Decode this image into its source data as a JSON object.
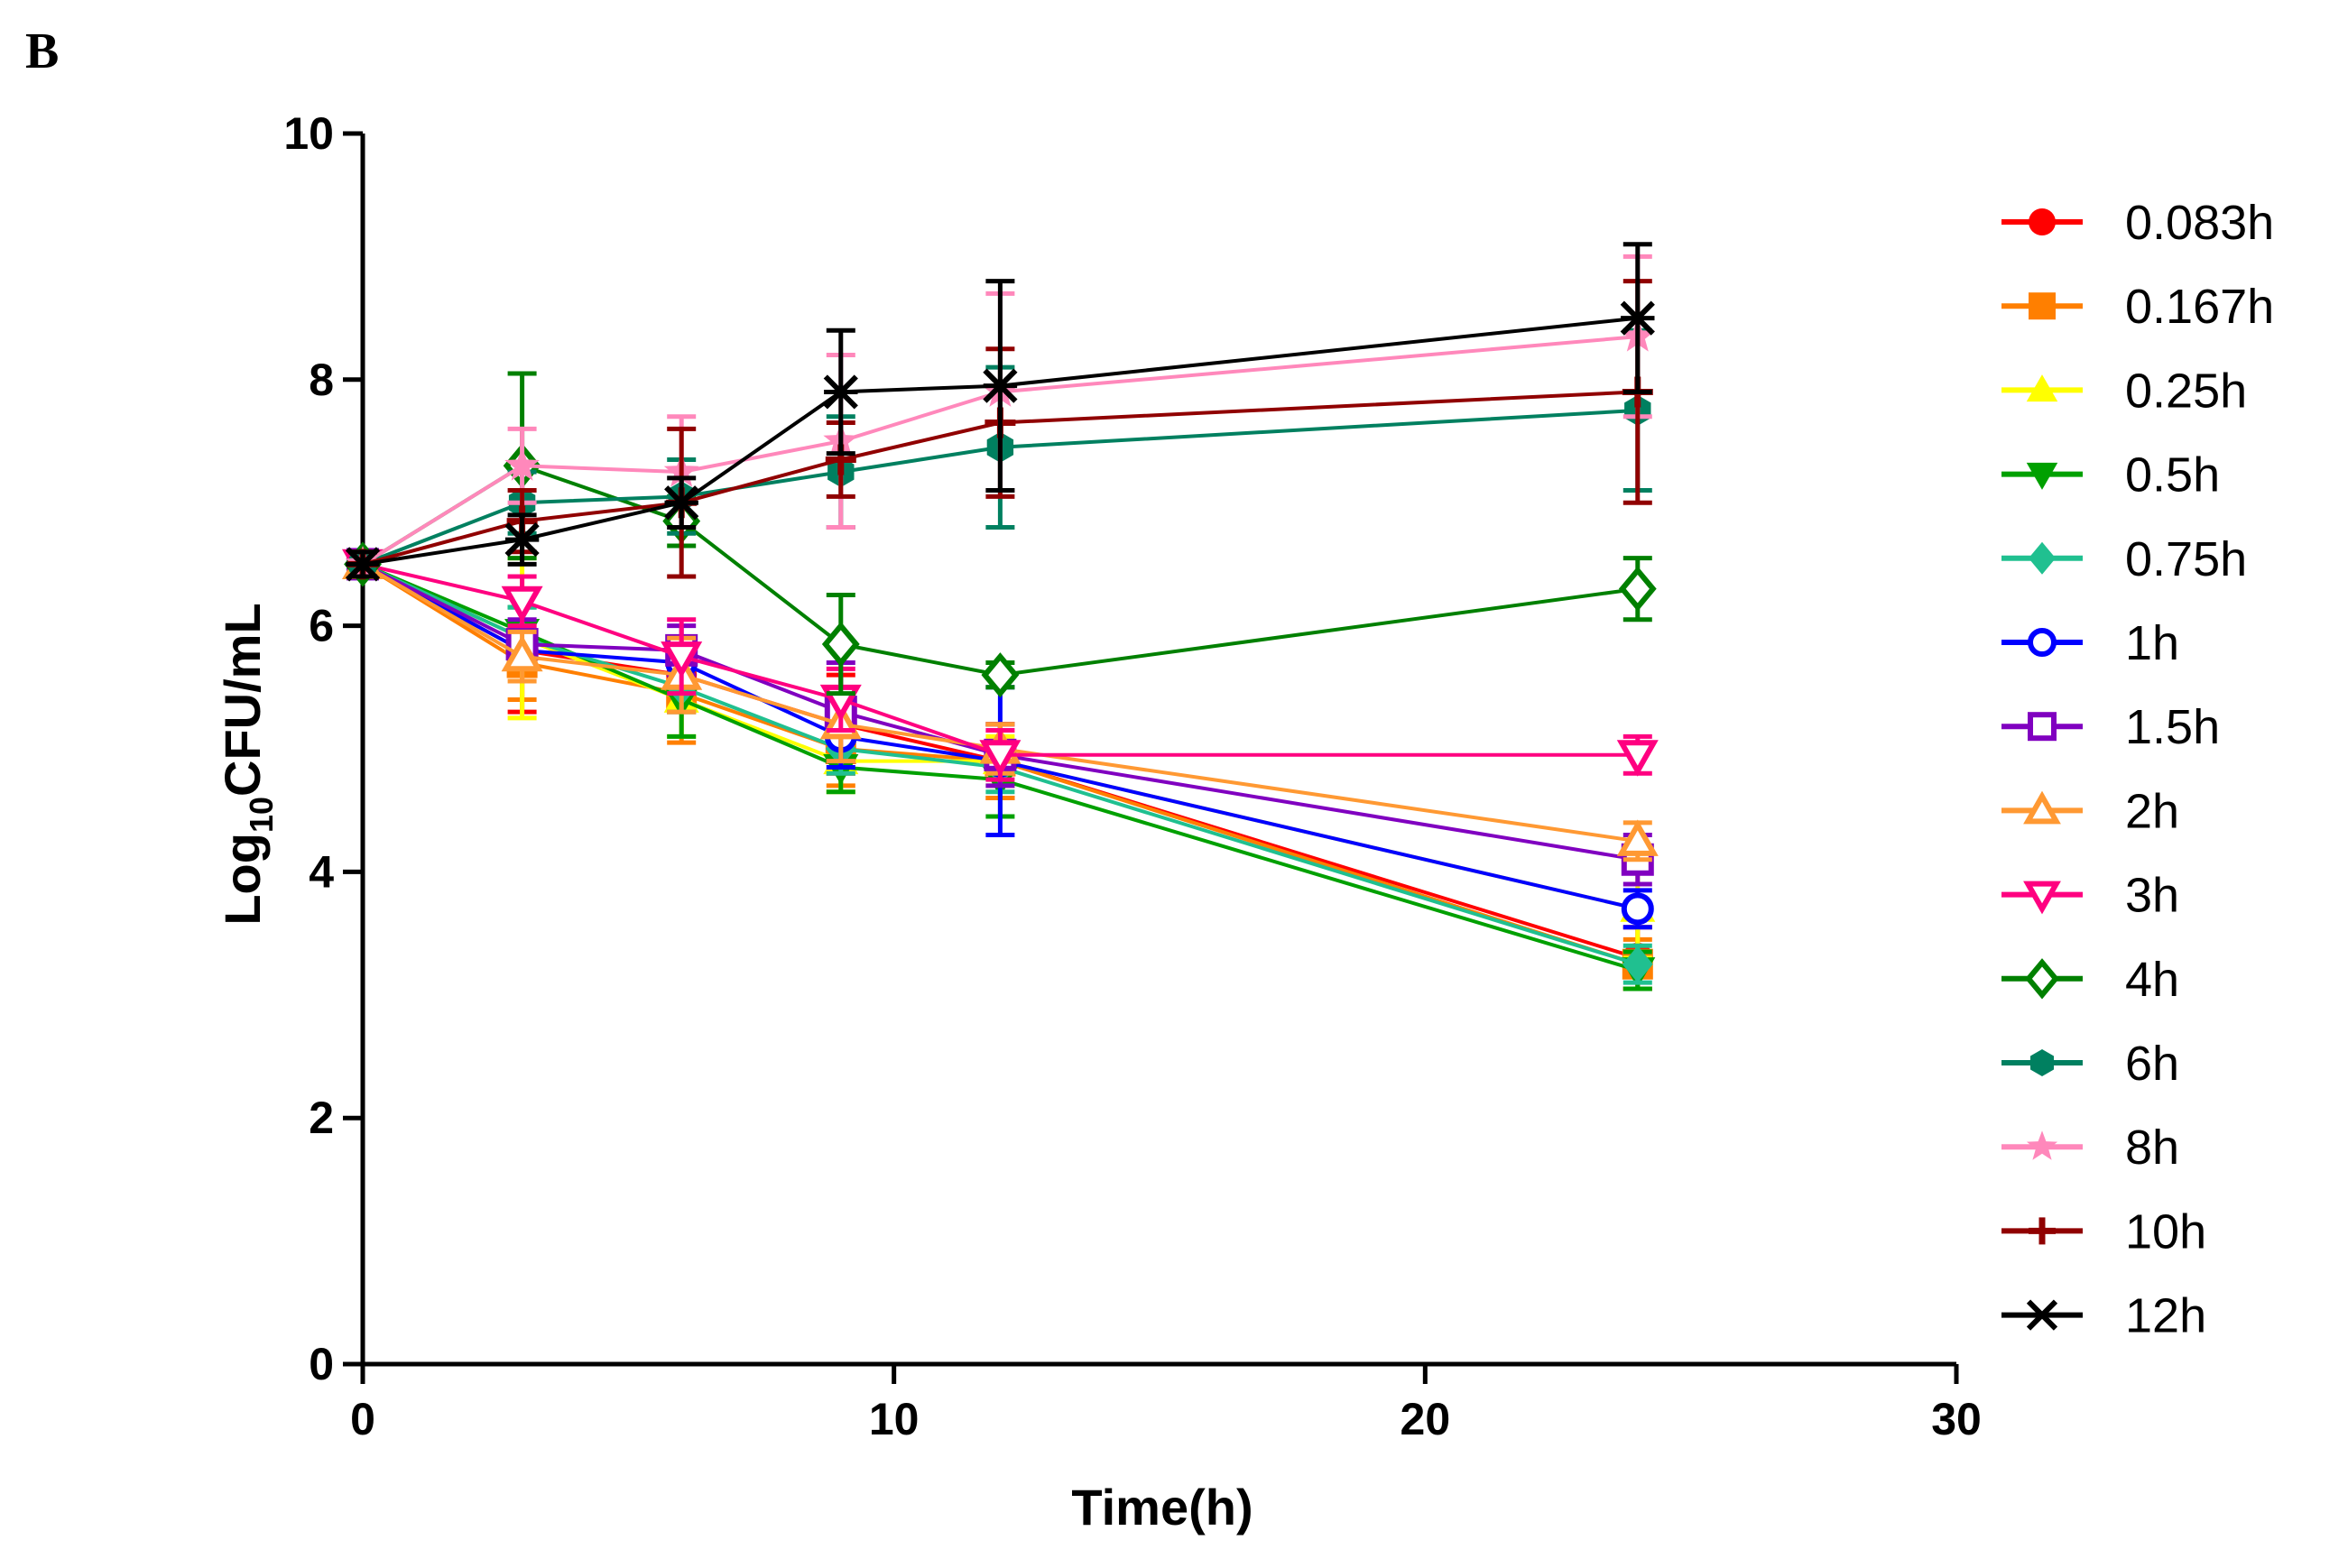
{
  "panel_label": "B",
  "chart_data": {
    "type": "line",
    "title": "",
    "xlabel": "Time(h)",
    "ylabel_main": "Log",
    "ylabel_sub": "10",
    "ylabel_rest": "CFU/mL",
    "xlim": [
      0,
      30
    ],
    "ylim": [
      0,
      10
    ],
    "xticks": [
      0,
      10,
      20,
      30
    ],
    "yticks": [
      0,
      2,
      4,
      6,
      8,
      10
    ],
    "xtick_labels": [
      "0",
      "10",
      "20",
      "30"
    ],
    "ytick_labels": [
      "0",
      "2",
      "4",
      "6",
      "8",
      "10"
    ],
    "grid": false,
    "legend_position": "right",
    "x": [
      0,
      3,
      6,
      9,
      12,
      24
    ],
    "series": [
      {
        "name": "0.083h",
        "color": "#ff0000",
        "marker": "circle",
        "values": [
          6.5,
          5.8,
          5.6,
          5.2,
          4.9,
          3.3
        ],
        "errors": [
          0.1,
          0.5,
          0.3,
          0.4,
          0.3,
          0.25
        ]
      },
      {
        "name": "0.167h",
        "color": "#ff7f00",
        "marker": "square",
        "values": [
          6.5,
          5.7,
          5.45,
          5.0,
          4.9,
          3.25
        ],
        "errors": [
          0.1,
          0.3,
          0.4,
          0.3,
          0.3,
          0.2
        ]
      },
      {
        "name": "0.25h",
        "color": "#ffff00",
        "marker": "triangle-up",
        "values": [
          6.5,
          5.9,
          5.4,
          4.9,
          4.9,
          3.7
        ],
        "errors": [
          0.1,
          0.65,
          0.3,
          0.25,
          0.2,
          0.4
        ]
      },
      {
        "name": "0.5h",
        "color": "#00a000",
        "marker": "triangle-down",
        "values": [
          6.5,
          5.95,
          5.4,
          4.85,
          4.75,
          3.2
        ],
        "errors": [
          0.1,
          0.2,
          0.3,
          0.2,
          0.3,
          0.15
        ]
      },
      {
        "name": "0.75h",
        "color": "#20c090",
        "marker": "diamond",
        "values": [
          6.5,
          5.9,
          5.5,
          5.0,
          4.85,
          3.25
        ],
        "errors": [
          0.1,
          0.25,
          0.2,
          0.2,
          0.2,
          0.15
        ]
      },
      {
        "name": "1h",
        "color": "#0000ff",
        "marker": "circle-open",
        "values": [
          6.5,
          5.8,
          5.7,
          5.1,
          4.9,
          3.7
        ],
        "errors": [
          0.1,
          0.15,
          0.2,
          0.25,
          0.6,
          0.15
        ]
      },
      {
        "name": "1.5h",
        "color": "#8000c0",
        "marker": "square-open",
        "values": [
          6.5,
          5.85,
          5.8,
          5.3,
          4.95,
          4.1
        ],
        "errors": [
          0.1,
          0.2,
          0.2,
          0.4,
          0.25,
          0.2
        ]
      },
      {
        "name": "2h",
        "color": "#ff9933",
        "marker": "triangle-open",
        "values": [
          6.5,
          5.75,
          5.6,
          5.2,
          5.0,
          4.25
        ],
        "errors": [
          0.1,
          0.2,
          0.3,
          0.3,
          0.2,
          0.15
        ]
      },
      {
        "name": "3h",
        "color": "#ff0080",
        "marker": "triangle-down-open",
        "values": [
          6.5,
          6.2,
          5.75,
          5.4,
          4.95,
          4.95
        ],
        "errors": [
          0.1,
          0.2,
          0.3,
          0.25,
          0.2,
          0.15
        ]
      },
      {
        "name": "4h",
        "color": "#008000",
        "marker": "diamond-open",
        "values": [
          6.5,
          7.3,
          6.85,
          5.85,
          5.6,
          6.3
        ],
        "errors": [
          0.1,
          0.75,
          0.2,
          0.4,
          0.1,
          0.25
        ]
      },
      {
        "name": "6h",
        "color": "#008060",
        "marker": "hexagon",
        "values": [
          6.5,
          7.0,
          7.05,
          7.25,
          7.45,
          7.75
        ],
        "errors": [
          0.1,
          0.25,
          0.3,
          0.45,
          0.65,
          0.65
        ]
      },
      {
        "name": "8h",
        "color": "#ff88bb",
        "marker": "star",
        "values": [
          6.5,
          7.3,
          7.25,
          7.5,
          7.9,
          8.35
        ],
        "errors": [
          0.1,
          0.3,
          0.45,
          0.7,
          0.8,
          0.65
        ]
      },
      {
        "name": "10h",
        "color": "#900000",
        "marker": "plus",
        "values": [
          6.5,
          6.85,
          7.0,
          7.35,
          7.65,
          7.9
        ],
        "errors": [
          0.1,
          0.25,
          0.6,
          0.3,
          0.6,
          0.9
        ]
      },
      {
        "name": "12h",
        "color": "#000000",
        "marker": "x",
        "values": [
          6.5,
          6.7,
          7.0,
          7.9,
          7.95,
          8.5
        ],
        "errors": [
          0.1,
          0.2,
          0.2,
          0.5,
          0.85,
          0.6
        ]
      }
    ]
  }
}
